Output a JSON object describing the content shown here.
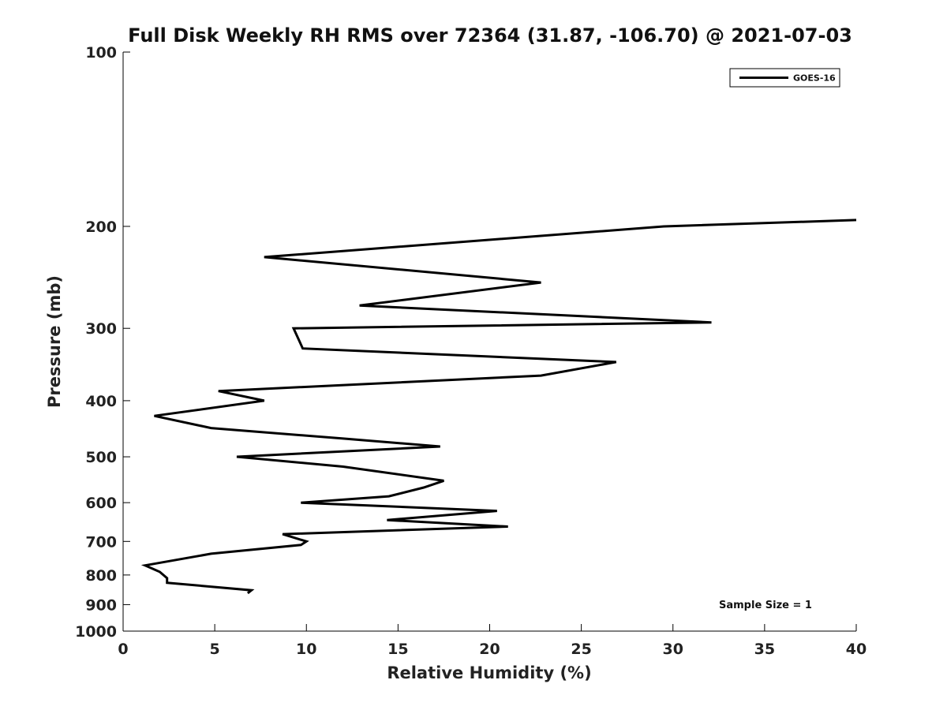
{
  "chart_data": {
    "type": "line",
    "title": "Full Disk Weekly RH RMS over 72364 (31.87, -106.70) @ 2021-07-03",
    "xlabel": "Relative Humidity (%)",
    "ylabel": "Pressure (mb)",
    "xlim": [
      0,
      40
    ],
    "ylim": [
      100,
      1000
    ],
    "y_scale": "log",
    "y_reversed": true,
    "x_ticks": [
      0,
      5,
      10,
      15,
      20,
      25,
      30,
      35,
      40
    ],
    "y_ticks": [
      100,
      200,
      300,
      400,
      500,
      600,
      700,
      800,
      900,
      1000
    ],
    "grid": false,
    "legend_position": "top-right",
    "annotation": "Sample Size = 1",
    "series": [
      {
        "name": "GOES-16",
        "color": "#000000",
        "points": [
          {
            "x": 40.0,
            "y": 195
          },
          {
            "x": 29.5,
            "y": 200
          },
          {
            "x": 7.7,
            "y": 226
          },
          {
            "x": 22.8,
            "y": 250
          },
          {
            "x": 12.9,
            "y": 274
          },
          {
            "x": 32.1,
            "y": 293
          },
          {
            "x": 9.3,
            "y": 300
          },
          {
            "x": 9.8,
            "y": 325
          },
          {
            "x": 26.9,
            "y": 343
          },
          {
            "x": 22.8,
            "y": 362
          },
          {
            "x": 5.2,
            "y": 385
          },
          {
            "x": 7.7,
            "y": 400
          },
          {
            "x": 1.7,
            "y": 425
          },
          {
            "x": 4.8,
            "y": 446
          },
          {
            "x": 12.0,
            "y": 465
          },
          {
            "x": 17.3,
            "y": 480
          },
          {
            "x": 6.2,
            "y": 500
          },
          {
            "x": 12.0,
            "y": 520
          },
          {
            "x": 17.5,
            "y": 550
          },
          {
            "x": 16.4,
            "y": 565
          },
          {
            "x": 14.5,
            "y": 585
          },
          {
            "x": 9.7,
            "y": 600
          },
          {
            "x": 20.4,
            "y": 620
          },
          {
            "x": 14.4,
            "y": 643
          },
          {
            "x": 21.0,
            "y": 660
          },
          {
            "x": 8.7,
            "y": 680
          },
          {
            "x": 10.0,
            "y": 700
          },
          {
            "x": 9.7,
            "y": 710
          },
          {
            "x": 4.8,
            "y": 735
          },
          {
            "x": 1.2,
            "y": 770
          },
          {
            "x": 2.0,
            "y": 790
          },
          {
            "x": 2.4,
            "y": 810
          },
          {
            "x": 2.4,
            "y": 825
          },
          {
            "x": 7.0,
            "y": 850
          },
          {
            "x": 6.8,
            "y": 860
          }
        ]
      }
    ]
  }
}
